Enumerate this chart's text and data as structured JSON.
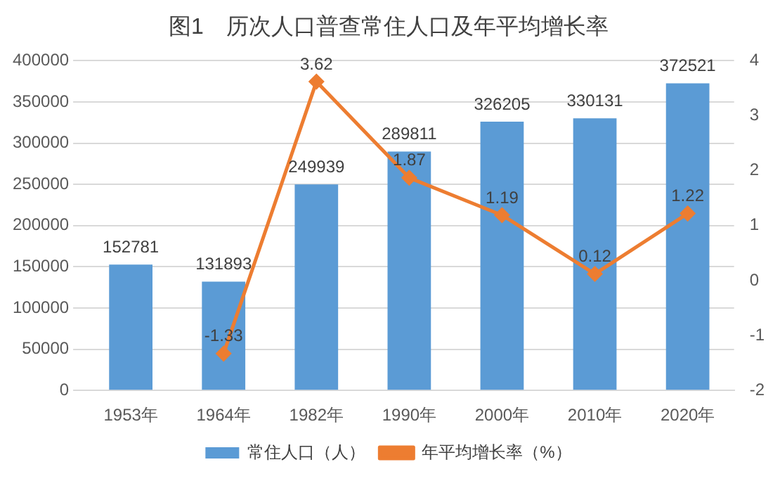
{
  "chart_data": {
    "type": "bar",
    "title": "图1　历次人口普查常住人口及年平均增长率",
    "categories": [
      "1953年",
      "1964年",
      "1982年",
      "1990年",
      "2000年",
      "2010年",
      "2020年"
    ],
    "series": [
      {
        "name": "常住人口（人）",
        "color": "#5b9bd5",
        "values": [
          152781,
          131893,
          249939,
          289811,
          326205,
          330131,
          372521
        ]
      },
      {
        "name": "年平均增长率（%）",
        "type": "line",
        "axis": "y2",
        "color": "#ed7d31",
        "marker": "diamond",
        "values": [
          null,
          -1.33,
          3.62,
          1.87,
          1.19,
          0.12,
          1.22
        ]
      }
    ],
    "ylim": [
      0,
      400000
    ],
    "yticks": [
      0,
      50000,
      100000,
      150000,
      200000,
      250000,
      300000,
      350000,
      400000
    ],
    "y2lim": [
      -2,
      4
    ],
    "y2ticks": [
      -2,
      -1,
      0,
      1,
      2,
      3,
      4
    ],
    "grid": "y",
    "legend": "bottom",
    "data_labels": true
  }
}
